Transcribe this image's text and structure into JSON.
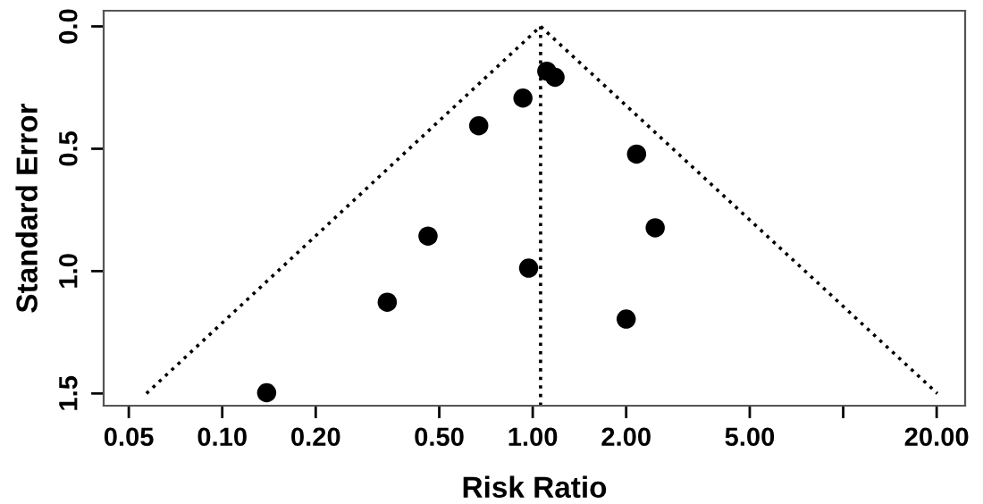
{
  "chart_data": {
    "type": "scatter",
    "xlabel": "Risk Ratio",
    "ylabel": "Standard Error",
    "log": "x",
    "xlim": [
      0.0415,
      24.7
    ],
    "ylim": [
      1.55,
      -0.064
    ],
    "xticks": [
      0.05,
      {
        "value": 0.1,
        "label": "0.10"
      },
      {
        "value": 0.2,
        "label": "0.20"
      },
      {
        "value": 0.5,
        "label": "0.50"
      },
      {
        "value": 1,
        "label": "1.00"
      },
      {
        "value": 2,
        "label": "2.00"
      },
      {
        "value": 5,
        "label": "5.00"
      },
      {
        "value": 10,
        "label": null
      },
      {
        "value": 20,
        "label": "20.00"
      }
    ],
    "yticks": [
      {
        "value": 0,
        "label": "0.0"
      },
      0.5,
      {
        "value": 1,
        "label": "1.0"
      },
      1.5
    ],
    "grid": false,
    "legend": false,
    "series": [
      {
        "color": "#000000",
        "marker": "circle",
        "x": [
          1.11,
          1.18,
          0.93,
          0.67,
          2.16,
          2.48,
          0.46,
          0.97,
          0.34,
          2.0,
          0.139
        ],
        "values": [
          0.183,
          0.208,
          0.293,
          0.406,
          0.522,
          0.823,
          0.857,
          0.988,
          1.127,
          1.196,
          1.497
        ]
      },
      {
        "type": "line",
        "color": "#000000",
        "marker": "none",
        "line_style": "dotted",
        "x": [
          0.057,
          1.06,
          20.1
        ],
        "values": [
          1.5,
          0,
          1.5
        ]
      }
    ],
    "ref_lines": [
      {
        "axis": "x",
        "value": 1.06,
        "color": "#000000",
        "line_style": "dotted"
      }
    ]
  }
}
